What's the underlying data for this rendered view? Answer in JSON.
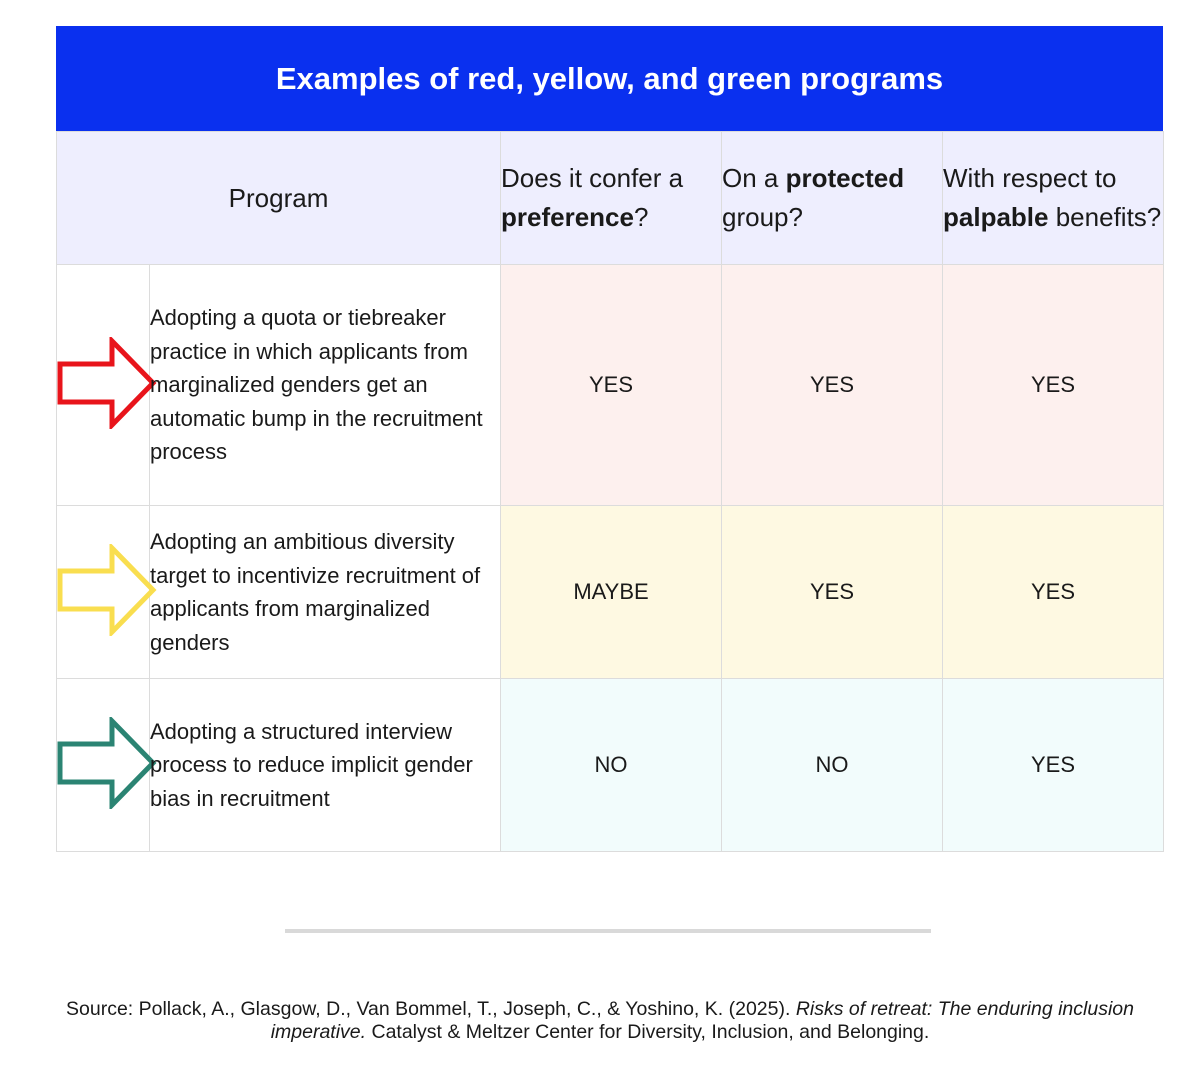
{
  "title": "Examples of red, yellow, and green programs",
  "headers": {
    "program": "Program",
    "preference": {
      "pre": "Does it confer a ",
      "bold": "preference",
      "post": "?"
    },
    "protected": {
      "pre": "On a ",
      "bold": "protected",
      "post": " group?"
    },
    "palpable": {
      "pre": "With respect to ",
      "bold": "palpable",
      "post": " benefits?"
    }
  },
  "rows": [
    {
      "color_name": "red",
      "arrow_color": "#e8141b",
      "program": "Adopting a quota or tiebreaker practice in which applicants from marginalized genders get an automatic bump in the recruitment process",
      "preference": "YES",
      "protected": "YES",
      "palpable": "YES"
    },
    {
      "color_name": "yellow",
      "arrow_color": "#f9de4f",
      "program": "Adopting an ambitious diversity target to incentivize recruitment of applicants from marginalized genders",
      "preference": "MAYBE",
      "protected": "YES",
      "palpable": "YES"
    },
    {
      "color_name": "green",
      "arrow_color": "#2b8473",
      "program": "Adopting a structured interview process to reduce implicit gender bias in recruitment",
      "preference": "NO",
      "protected": "NO",
      "palpable": "YES"
    }
  ],
  "source": {
    "prefix": "Source: Pollack, A., Glasgow, D., Van Bommel, T., Joseph, C., & Yoshino, K. (2025). ",
    "title_italic": "Risks of retreat: The enduring inclusion imperative.",
    "suffix": "  Catalyst & Meltzer Center for Diversity, Inclusion, and Belonging."
  }
}
